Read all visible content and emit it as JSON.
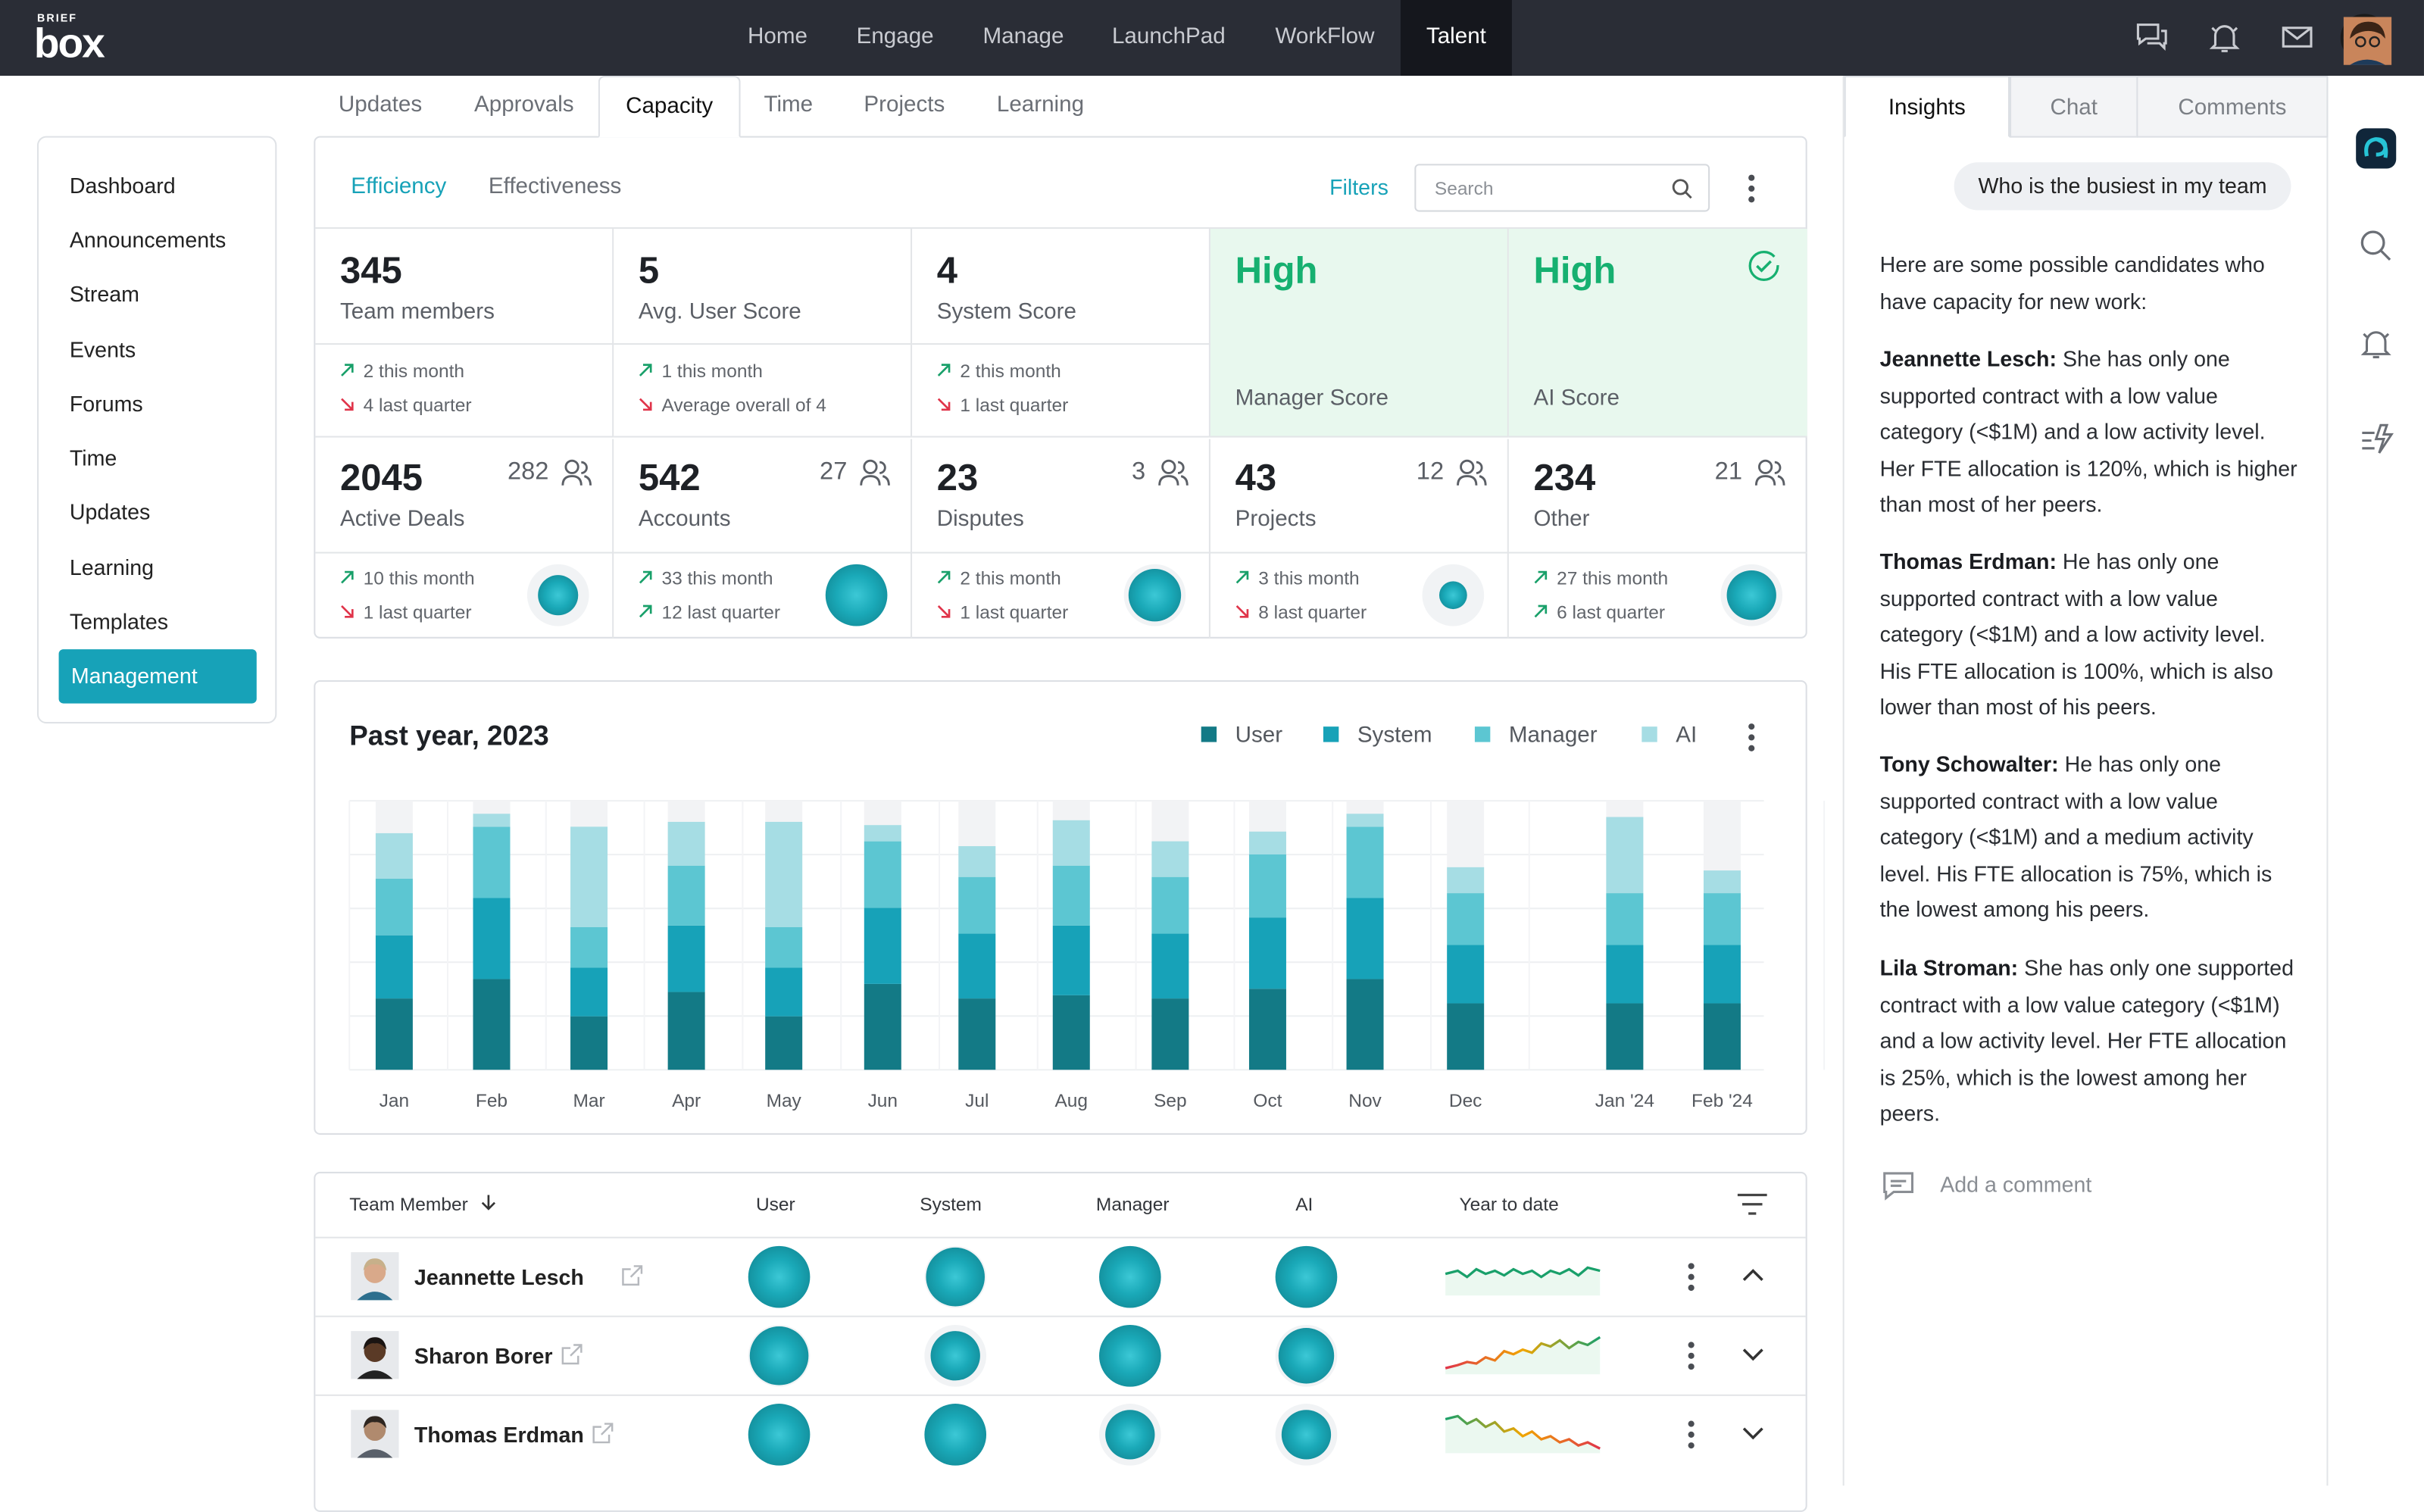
{
  "app": {
    "logo_top": "BRIEF",
    "logo_main": "box"
  },
  "nav": {
    "items": [
      "Home",
      "Engage",
      "Manage",
      "LaunchPad",
      "WorkFlow",
      "Talent"
    ],
    "active": "Talent"
  },
  "subtabs": [
    "Updates",
    "Approvals",
    "Capacity",
    "Time",
    "Projects",
    "Learning"
  ],
  "sidebar": {
    "items": [
      "Dashboard",
      "Announcements",
      "Stream",
      "Events",
      "Forums",
      "Time",
      "Updates",
      "Learning",
      "Templates",
      "Management"
    ],
    "active": "Management"
  },
  "panel": {
    "tabs": [
      "Efficiency",
      "Effectiveness"
    ],
    "filters": "Filters",
    "search_placeholder": "Search"
  },
  "metrics_top": [
    {
      "value": "345",
      "label": "Team members",
      "line1": "2 this month",
      "line2": "4 last quarter"
    },
    {
      "value": "5",
      "label": "Avg. User Score",
      "line1": "1 this month",
      "line2": "Average overall of 4"
    },
    {
      "value": "4",
      "label": "System Score",
      "line1": "2 this month",
      "line2": "1 last quarter"
    },
    {
      "value": "High",
      "label": "Manager Score"
    },
    {
      "value": "High",
      "label": "AI Score"
    }
  ],
  "metrics_bottom": [
    {
      "value": "2045",
      "label": "Active Deals",
      "count": "282",
      "line1": "10 this month",
      "line2": "1 last quarter"
    },
    {
      "value": "542",
      "label": "Accounts",
      "count": "27",
      "line1": "33 this month",
      "line2": "12 last quarter"
    },
    {
      "value": "23",
      "label": "Disputes",
      "count": "3",
      "line1": "2 this month",
      "line2": "1 last quarter"
    },
    {
      "value": "43",
      "label": "Projects",
      "count": "12",
      "line1": "3 this month",
      "line2": "8 last quarter"
    },
    {
      "value": "234",
      "label": "Other",
      "count": "21",
      "line1": "27 this month",
      "line2": "6 last quarter"
    }
  ],
  "chart_data": {
    "type": "bar",
    "title": "Past year, 2023",
    "categories": [
      "Jan",
      "Feb",
      "Mar",
      "Apr",
      "May",
      "Jun",
      "Jul",
      "Aug",
      "Sep",
      "Oct",
      "Nov",
      "Dec",
      "Jan '24",
      "Feb '24"
    ],
    "series": [
      {
        "name": "User",
        "color": "#137a86",
        "values": [
          44,
          56,
          33,
          48,
          33,
          53,
          44,
          46,
          44,
          50,
          56,
          41,
          41,
          41
        ]
      },
      {
        "name": "System",
        "color": "#17a2b8",
        "values": [
          39,
          50,
          30,
          41,
          30,
          47,
          40,
          43,
          40,
          44,
          50,
          36,
          36,
          36
        ]
      },
      {
        "name": "Manager",
        "color": "#5cc6d2",
        "values": [
          35,
          44,
          25,
          37,
          25,
          41,
          35,
          37,
          35,
          39,
          44,
          32,
          32,
          32
        ]
      },
      {
        "name": "AI",
        "color": "#a6dde4",
        "values": [
          28,
          8,
          62,
          27,
          65,
          10,
          19,
          28,
          22,
          14,
          8,
          16,
          47,
          14
        ]
      }
    ],
    "ylim": [
      0,
      166
    ],
    "legend": "top-right"
  },
  "table": {
    "headers": [
      "Team Member",
      "User",
      "System",
      "Manager",
      "AI",
      "Year to date"
    ],
    "rows": [
      {
        "name": "Jeannette Lesch"
      },
      {
        "name": "Sharon Borer"
      },
      {
        "name": "Thomas Erdman"
      }
    ]
  },
  "right": {
    "tabs": [
      "Insights",
      "Chat",
      "Comments"
    ],
    "question": "Who is the busiest in my team",
    "intro": "Here are some possible candidates who have capacity for new work:",
    "candidates": [
      {
        "name": "Jeannette Lesch:",
        "text": " She has only one supported contract with a low value category (<$1M) and a low activity level. Her FTE allocation is 120%, which is higher than most of her peers."
      },
      {
        "name": "Thomas Erdman:",
        "text": " He has only one supported contract with a low value category (<$1M) and a low activity level. His FTE allocation is 100%, which is also lower than most of his peers."
      },
      {
        "name": "Tony Schowalter:",
        "text": " He has only one supported contract with a low value category (<$1M) and a medium activity level. His FTE allocation is 75%, which is the lowest among his peers."
      },
      {
        "name": "Lila Stroman:",
        "text": " She has only one supported contract with a low value category (<$1M) and a low activity level. Her FTE allocation is 25%, which is the lowest among her peers."
      }
    ],
    "comment_placeholder": "Add a comment"
  }
}
